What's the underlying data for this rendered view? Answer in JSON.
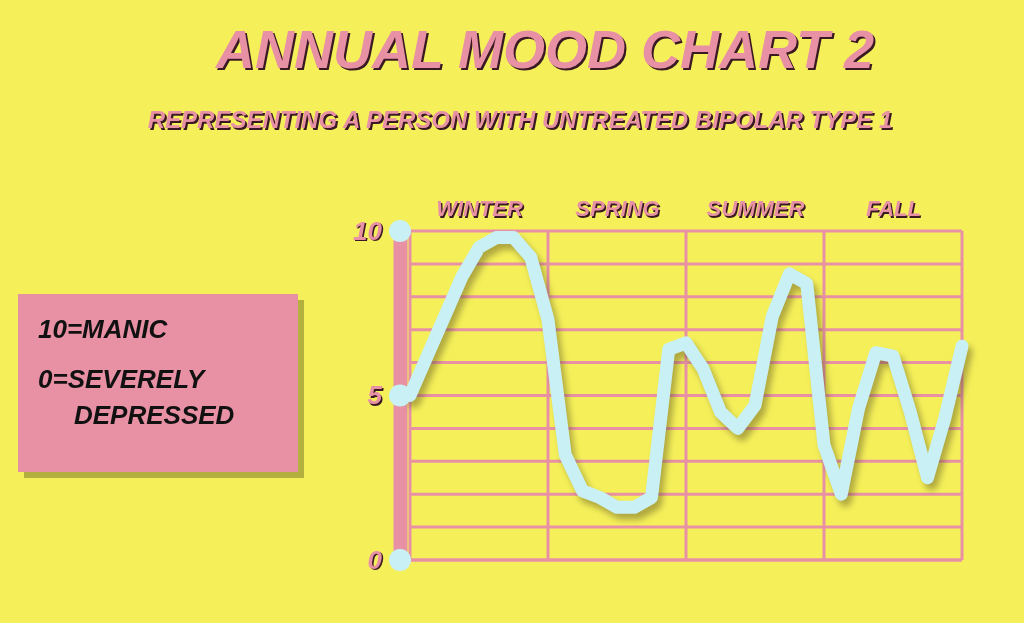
{
  "chart_data": {
    "type": "line",
    "title": "ANNUAL MOOD CHART 2",
    "subtitle": "REPRESENTING A PERSON WITH UNTREATED BIPOLAR TYPE 1",
    "annotations": [
      "10=MANIC",
      "0=SEVERELY DEPRESSED"
    ],
    "categories": [
      null,
      null,
      null,
      null,
      "WINTER",
      null,
      null,
      null,
      null,
      null,
      null,
      null,
      "SPRING",
      null,
      null,
      null,
      null,
      null,
      null,
      null,
      "SUMMER",
      null,
      null,
      null,
      null,
      null,
      null,
      null,
      "FALL",
      null,
      null,
      null,
      null
    ],
    "ylim": [
      0,
      10
    ],
    "yticks": [
      0,
      {
        "value": 1,
        "label": null
      },
      {
        "value": 2,
        "label": null
      },
      {
        "value": 3,
        "label": null
      },
      {
        "value": 4,
        "label": null
      },
      5,
      {
        "value": 6,
        "label": null
      },
      {
        "value": 7,
        "label": null
      },
      {
        "value": 8,
        "label": null
      },
      {
        "value": 9,
        "label": null
      },
      10
    ],
    "grid": true,
    "line_style": "solid",
    "series": [
      {
        "color": "#c9f1f5",
        "values": [
          5.0,
          6.2,
          7.4,
          8.6,
          9.5,
          9.8,
          9.8,
          9.2,
          7.3,
          3.2,
          2.1,
          1.9,
          1.6,
          1.6,
          1.9,
          6.4,
          6.6,
          5.8,
          4.5,
          4.0,
          4.7,
          7.4,
          8.7,
          8.4,
          3.5,
          2.0,
          4.6,
          6.3,
          6.2,
          4.5,
          2.5,
          4.3,
          6.5
        ]
      }
    ]
  }
}
